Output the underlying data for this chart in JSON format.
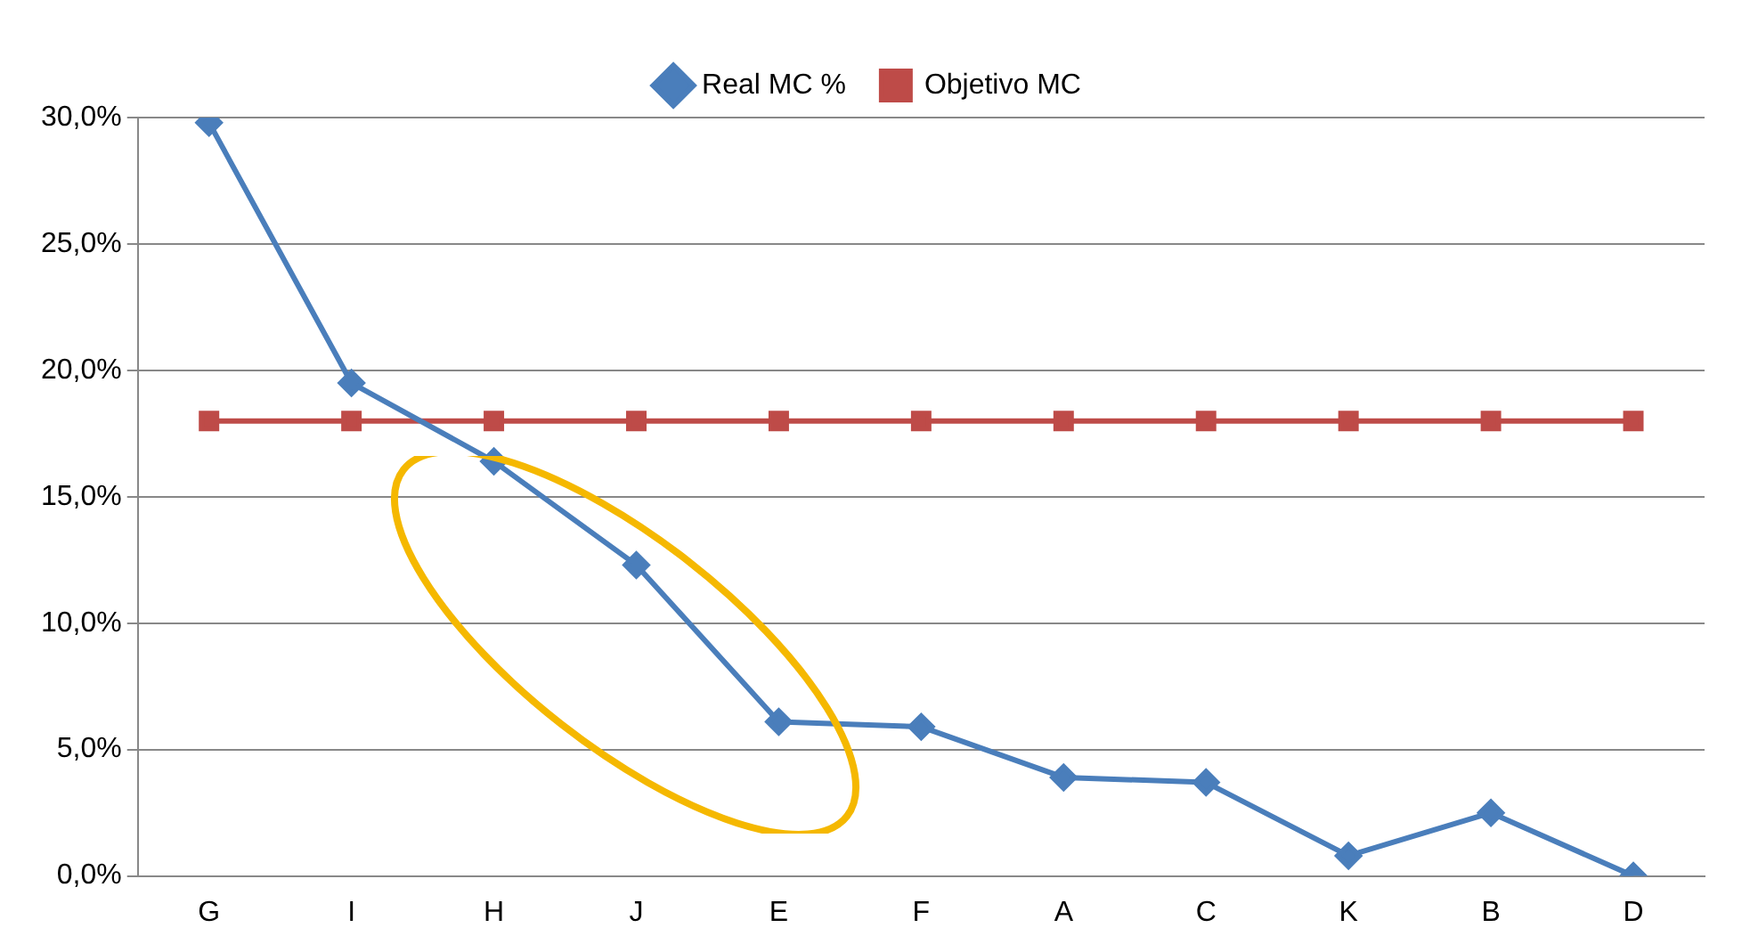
{
  "chart_data": {
    "type": "line",
    "categories": [
      "G",
      "I",
      "H",
      "J",
      "E",
      "F",
      "A",
      "C",
      "K",
      "B",
      "D"
    ],
    "series": [
      {
        "name": "Real MC %",
        "color": "#4a7ebb",
        "marker": "diamond",
        "values": [
          29.8,
          19.5,
          16.4,
          12.3,
          6.1,
          5.9,
          3.9,
          3.7,
          0.8,
          2.5,
          0
        ]
      },
      {
        "name": "Objetivo MC",
        "color": "#be4b48",
        "marker": "square",
        "values": [
          18,
          18,
          18,
          18,
          18,
          18,
          18,
          18,
          18,
          18,
          18
        ]
      }
    ],
    "ylim": [
      0,
      30
    ],
    "yticks": [
      {
        "value": 0,
        "label": "0,0%"
      },
      {
        "value": 5,
        "label": "5,0%"
      },
      {
        "value": 10,
        "label": "10,0%"
      },
      {
        "value": 15,
        "label": "15,0%"
      },
      {
        "value": 20,
        "label": "20,0%"
      },
      {
        "value": 25,
        "label": "25,0%"
      },
      {
        "value": 30,
        "label": "30,0%"
      }
    ],
    "grid": "y",
    "legend": "top",
    "line_style": "solid"
  }
}
